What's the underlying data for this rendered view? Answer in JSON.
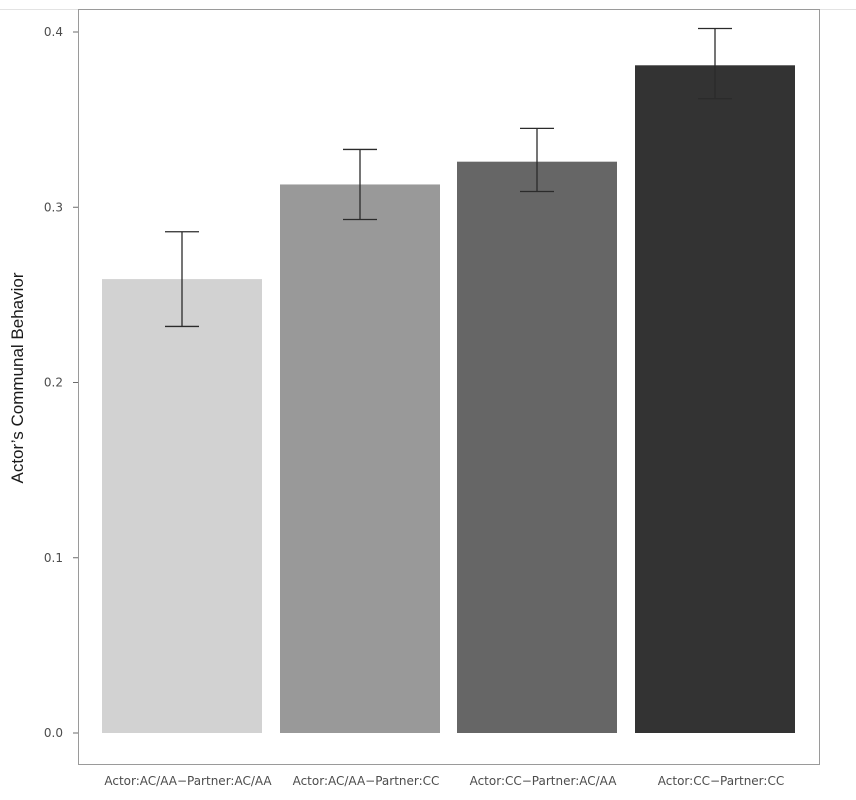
{
  "chart_data": {
    "type": "bar",
    "title": "",
    "xlabel": "",
    "ylabel": "Actor’s Communal Behavior",
    "categories": [
      "Actor:AC/AA−Partner:AC/AA",
      "Actor:AC/AA−Partner:CC",
      "Actor:CC−Partner:AC/AA",
      "Actor:CC−Partner:CC"
    ],
    "values": [
      0.259,
      0.313,
      0.326,
      0.381
    ],
    "error_low": [
      0.232,
      0.293,
      0.309,
      0.362
    ],
    "error_high": [
      0.286,
      0.333,
      0.345,
      0.402
    ],
    "ylim": [
      0,
      0.4
    ],
    "yticks": [
      "0.0",
      "0.1",
      "0.2",
      "0.3",
      "0.4"
    ],
    "colors": [
      "#d2d2d2",
      "#999999",
      "#666666",
      "#333333"
    ],
    "grid": false,
    "legend": "none"
  }
}
